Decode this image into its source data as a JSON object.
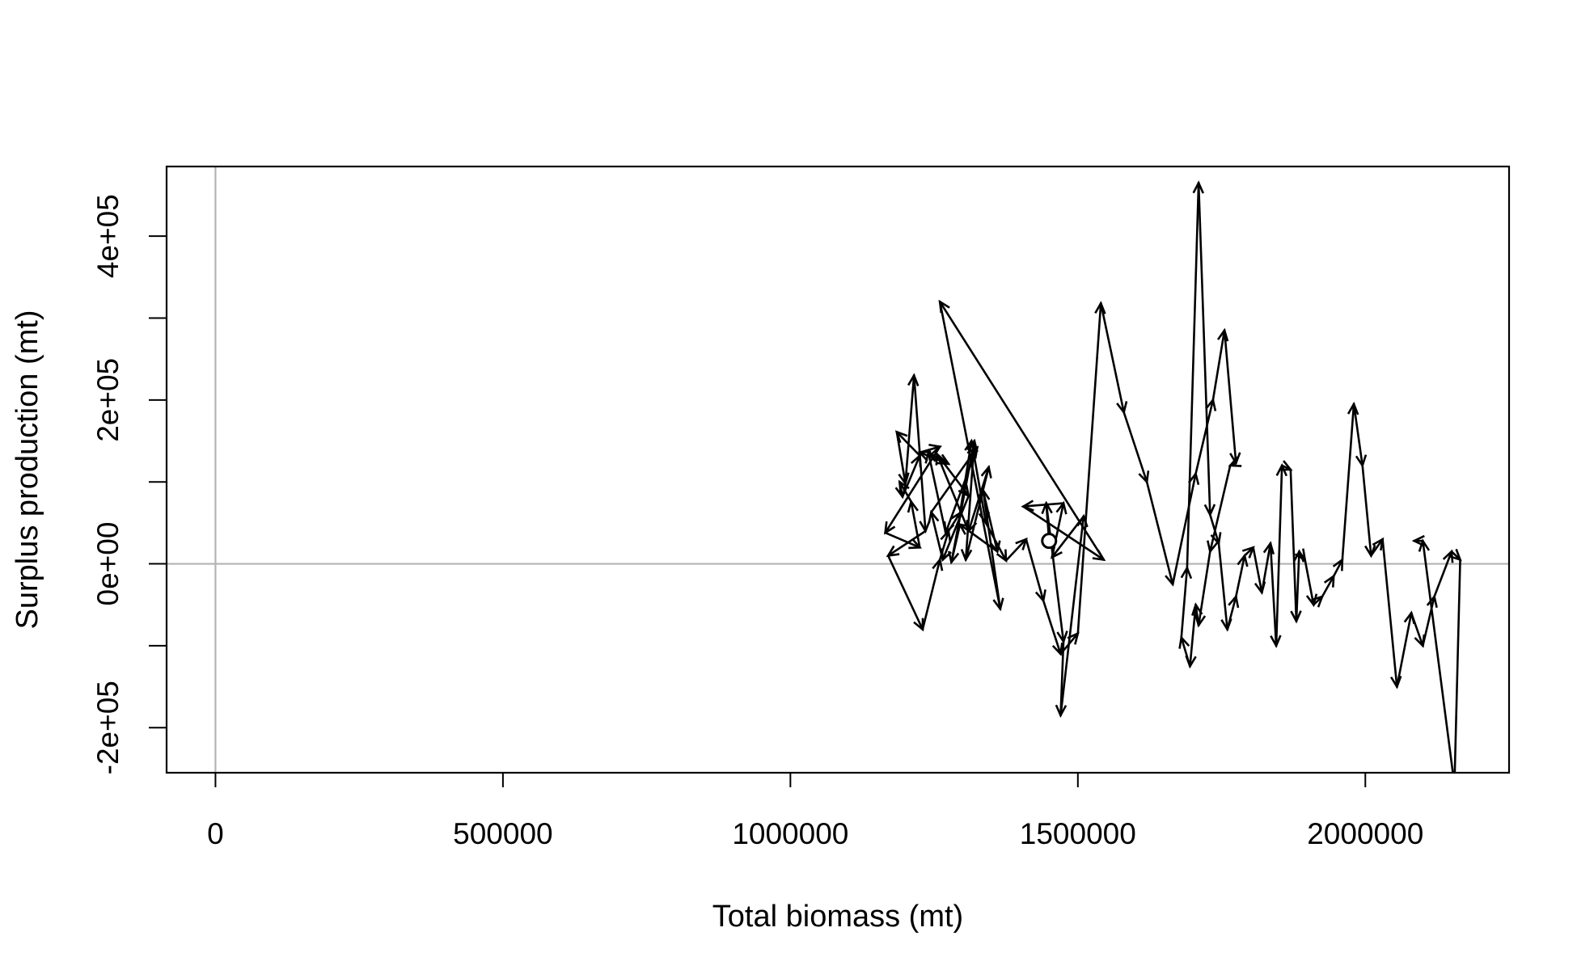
{
  "chart_data": {
    "type": "line",
    "title": "",
    "xlabel": "Total biomass (mt)",
    "ylabel": "Surplus production (mt)",
    "xlim": [
      -85000,
      2250000
    ],
    "ylim": [
      -255000,
      485000
    ],
    "x_ticks": [
      0,
      500000,
      1000000,
      1500000,
      2000000
    ],
    "x_tick_labels": [
      "0",
      "500000",
      "1000000",
      "1500000",
      "2000000"
    ],
    "y_ticks": [
      -200000,
      -100000,
      0,
      100000,
      200000,
      300000,
      400000
    ],
    "y_tick_labels": [
      "-2e+05",
      "",
      "0e+00",
      "",
      "2e+05",
      "",
      "4e+05"
    ],
    "reference_lines": {
      "x": 0,
      "y": 0,
      "color": "#b3b3b3"
    },
    "series_color": "#000000",
    "start_marker": "open-circle",
    "path_style": "arrows",
    "x": [
      1450000,
      1445000,
      1475000,
      1470000,
      1510000,
      1455000,
      1475000,
      1405000,
      1545000,
      1260000,
      1365000,
      1335000,
      1360000,
      1295000,
      1280000,
      1320000,
      1305000,
      1345000,
      1310000,
      1255000,
      1310000,
      1265000,
      1245000,
      1325000,
      1270000,
      1240000,
      1275000,
      1225000,
      1260000,
      1165000,
      1225000,
      1210000,
      1190000,
      1195000,
      1225000,
      1185000,
      1200000,
      1215000,
      1235000,
      1170000,
      1230000,
      1260000,
      1275000,
      1295000,
      1315000,
      1340000,
      1375000,
      1410000,
      1440000,
      1470000,
      1500000,
      1540000,
      1580000,
      1620000,
      1665000,
      1705000,
      1735000,
      1755000,
      1775000,
      1765000,
      1730000,
      1710000,
      1705000,
      1695000,
      1680000,
      1690000,
      1710000,
      1730000,
      1745000,
      1760000,
      1775000,
      1790000,
      1805000,
      1820000,
      1835000,
      1845000,
      1855000,
      1870000,
      1880000,
      1885000,
      1895000,
      1910000,
      1925000,
      1945000,
      1960000,
      1980000,
      1995000,
      2010000,
      2030000,
      2055000,
      2080000,
      2100000,
      2120000,
      2150000,
      2165000,
      2155000,
      2100000,
      2085000
    ],
    "y": [
      28000,
      74000,
      -95000,
      -185000,
      58000,
      8000,
      74000,
      70000,
      5000,
      320000,
      -55000,
      90000,
      15000,
      48000,
      2000,
      150000,
      5000,
      118000,
      40000,
      134000,
      83000,
      5000,
      63000,
      142000,
      38000,
      136000,
      122000,
      136000,
      143000,
      38000,
      20000,
      76000,
      100000,
      82000,
      132000,
      161000,
      98000,
      230000,
      40000,
      10000,
      -80000,
      5000,
      40000,
      62000,
      150000,
      50000,
      4000,
      30000,
      -45000,
      -110000,
      -85000,
      318000,
      185000,
      100000,
      -25000,
      110000,
      200000,
      285000,
      123000,
      120000,
      15000,
      -75000,
      -50000,
      -125000,
      -90000,
      -5000,
      465000,
      60000,
      25000,
      -80000,
      -40000,
      10000,
      20000,
      -35000,
      25000,
      -100000,
      120000,
      115000,
      -70000,
      15000,
      5000,
      -50000,
      -40000,
      -15000,
      5000,
      195000,
      120000,
      10000,
      30000,
      -150000,
      -60000,
      -100000,
      -40000,
      15000,
      5000,
      -270000,
      28000,
      28000
    ]
  }
}
